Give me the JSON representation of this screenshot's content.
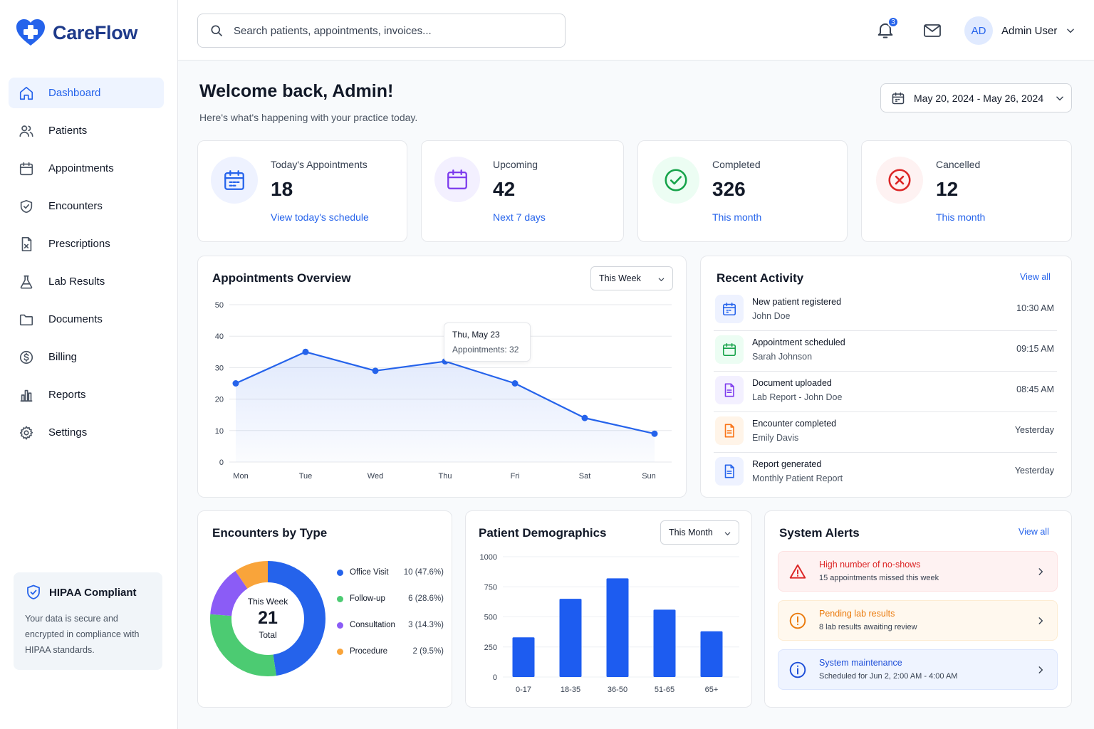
{
  "app": {
    "name": "CareFlow"
  },
  "sidebar": {
    "items": [
      {
        "label": "Dashboard",
        "icon": "home-icon",
        "active": true
      },
      {
        "label": "Patients",
        "icon": "users-icon"
      },
      {
        "label": "Appointments",
        "icon": "calendar-icon"
      },
      {
        "label": "Encounters",
        "icon": "shield-check-icon"
      },
      {
        "label": "Prescriptions",
        "icon": "prescription-icon"
      },
      {
        "label": "Lab Results",
        "icon": "flask-icon"
      },
      {
        "label": "Documents",
        "icon": "folder-icon"
      },
      {
        "label": "Billing",
        "icon": "dollar-circle-icon"
      },
      {
        "label": "Reports",
        "icon": "bar-chart-icon"
      },
      {
        "label": "Settings",
        "icon": "gear-icon"
      }
    ],
    "hipaa": {
      "title": "HIPAA Compliant",
      "text": "Your data is secure and encrypted in compliance with HIPAA standards."
    }
  },
  "header": {
    "search_placeholder": "Search patients, appointments, invoices...",
    "notification_count": "3",
    "user_initials": "AD",
    "user_name": "Admin User"
  },
  "welcome": {
    "title": "Welcome back, Admin!",
    "subtitle": "Here's what's happening with your practice today.",
    "date_range": "May 20, 2024 - May 26, 2024"
  },
  "stats": [
    {
      "label": "Today's Appointments",
      "value": "18",
      "link": "View today's schedule",
      "color": "#2563eb",
      "bg": "#eef2ff"
    },
    {
      "label": "Upcoming",
      "value": "42",
      "link": "Next 7 days",
      "color": "#7c3aed",
      "bg": "#f3f0ff"
    },
    {
      "label": "Completed",
      "value": "326",
      "link": "This month",
      "color": "#16a34a",
      "bg": "#ecfdf3"
    },
    {
      "label": "Cancelled",
      "value": "12",
      "link": "This month",
      "color": "#dc2626",
      "bg": "#fef2f2"
    }
  ],
  "overview": {
    "title": "Appointments Overview",
    "range": "This Week",
    "tooltip": {
      "day": "Thu, May 23",
      "text": "Appointments: 32"
    }
  },
  "activity": {
    "title": "Recent Activity",
    "view_all": "View all",
    "items": [
      {
        "title": "New patient registered",
        "sub": "John Doe",
        "time": "10:30 AM",
        "icon": "calendar-icon",
        "color": "#2563eb",
        "bg": "#eef2ff"
      },
      {
        "title": "Appointment scheduled",
        "sub": "Sarah Johnson",
        "time": "09:15 AM",
        "icon": "calendar-icon",
        "color": "#16a34a",
        "bg": "#ecfdf3"
      },
      {
        "title": "Document uploaded",
        "sub": "Lab Report - John Doe",
        "time": "08:45 AM",
        "icon": "document-icon",
        "color": "#7c3aed",
        "bg": "#f3f0ff"
      },
      {
        "title": "Encounter completed",
        "sub": "Emily Davis",
        "time": "Yesterday",
        "icon": "document-icon",
        "color": "#f97316",
        "bg": "#fff4e8"
      },
      {
        "title": "Report generated",
        "sub": "Monthly Patient Report",
        "time": "Yesterday",
        "icon": "document-icon",
        "color": "#2563eb",
        "bg": "#eef2ff"
      }
    ]
  },
  "encounters": {
    "title": "Encounters by Type",
    "center_top": "This Week",
    "center_value": "21",
    "center_bottom": "Total"
  },
  "demographics": {
    "title": "Patient Demographics",
    "range": "This Month"
  },
  "alerts": {
    "title": "System Alerts",
    "view_all": "View all",
    "items": [
      {
        "title": "High number of no-shows",
        "sub": "15 appointments missed this week",
        "icon": "warning-triangle-icon",
        "color": "#dc2626",
        "bg": "#fef2f2",
        "border": "#fde2e2"
      },
      {
        "title": "Pending lab results",
        "sub": "8 lab results awaiting review",
        "icon": "exclamation-circle-icon",
        "color": "#ea7a0c",
        "bg": "#fff8ee",
        "border": "#fdecd2"
      },
      {
        "title": "System maintenance",
        "sub": "Scheduled for Jun 2, 2:00 AM - 4:00 AM",
        "icon": "info-circle-icon",
        "color": "#1d4ed8",
        "bg": "#eff4ff",
        "border": "#dbe5fd"
      }
    ]
  },
  "chart_data": [
    {
      "type": "area",
      "title": "Appointments Overview",
      "categories": [
        "Mon",
        "Tue",
        "Wed",
        "Thu",
        "Fri",
        "Sat",
        "Sun"
      ],
      "values": [
        25,
        35,
        29,
        32,
        25,
        14,
        9
      ],
      "ylim": [
        0,
        50
      ],
      "yticks": [
        0,
        10,
        20,
        30,
        40,
        50
      ],
      "color": "#2563eb",
      "grid": true
    },
    {
      "type": "pie",
      "title": "Encounters by Type",
      "categories": [
        "Office Visit",
        "Follow-up",
        "Consultation",
        "Procedure"
      ],
      "values": [
        10,
        6,
        3,
        2
      ],
      "labels": [
        "10 (47.6%)",
        "6 (28.6%)",
        "3 (14.3%)",
        "2 (9.5%)"
      ],
      "colors": [
        "#2563eb",
        "#4ccb72",
        "#8b5cf6",
        "#f9a43a"
      ],
      "legend": "right"
    },
    {
      "type": "bar",
      "title": "Patient Demographics",
      "categories": [
        "0-17",
        "18-35",
        "36-50",
        "51-65",
        "65+"
      ],
      "values": [
        330,
        650,
        820,
        560,
        380
      ],
      "ylim": [
        0,
        1000
      ],
      "yticks": [
        0,
        250,
        500,
        750,
        1000
      ],
      "color": "#1d5cf0",
      "grid": true
    }
  ]
}
